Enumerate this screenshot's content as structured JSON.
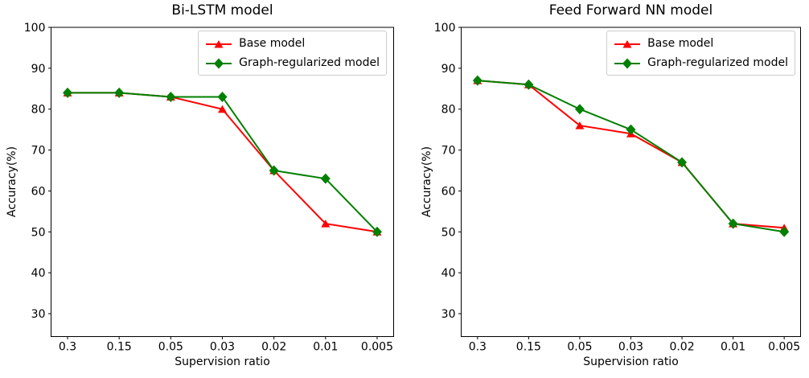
{
  "figure": {
    "background": "#ffffff",
    "axis_color": "#000000",
    "legend_border_color": "#cccccc"
  },
  "chart_data": [
    {
      "type": "line",
      "title": "Bi-LSTM model",
      "xlabel": "Supervision ratio",
      "ylabel": "Accuracy(%)",
      "categories": [
        "0.3",
        "0.15",
        "0.05",
        "0.03",
        "0.02",
        "0.01",
        "0.005"
      ],
      "yticks": [
        100,
        90,
        80,
        70,
        60,
        50,
        40,
        30
      ],
      "ylim": [
        24.4,
        100
      ],
      "grid": false,
      "legend_position": "upper right",
      "series": [
        {
          "name": "Base model",
          "color": "#ff0000",
          "marker": "triangle",
          "values": [
            84,
            84,
            83,
            80,
            65,
            52,
            50
          ]
        },
        {
          "name": "Graph-regularized model",
          "color": "#008000",
          "marker": "diamond",
          "values": [
            84,
            84,
            83,
            83,
            65,
            63,
            50
          ]
        }
      ]
    },
    {
      "type": "line",
      "title": "Feed Forward NN model",
      "xlabel": "Supervision ratio",
      "ylabel": "Accuracy(%)",
      "categories": [
        "0.3",
        "0.15",
        "0.05",
        "0.03",
        "0.02",
        "0.01",
        "0.005"
      ],
      "yticks": [
        100,
        90,
        80,
        70,
        60,
        50,
        40,
        30
      ],
      "ylim": [
        24.4,
        100
      ],
      "grid": false,
      "legend_position": "upper right",
      "series": [
        {
          "name": "Base model",
          "color": "#ff0000",
          "marker": "triangle",
          "values": [
            87,
            86,
            76,
            74,
            67,
            52,
            51
          ]
        },
        {
          "name": "Graph-regularized model",
          "color": "#008000",
          "marker": "diamond",
          "values": [
            87,
            86,
            80,
            75,
            67,
            52,
            50
          ]
        }
      ]
    }
  ]
}
